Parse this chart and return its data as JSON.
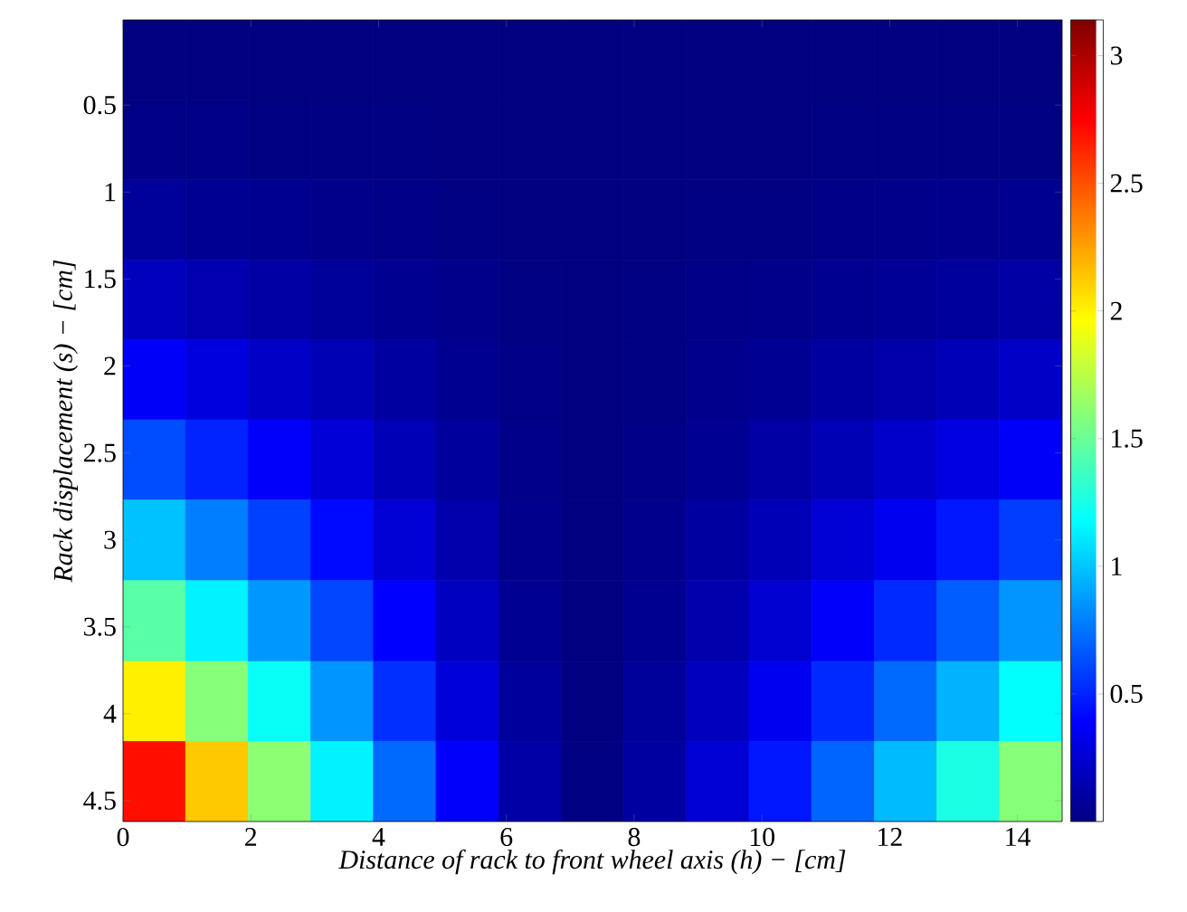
{
  "chart_data": {
    "type": "heatmap",
    "xlabel": "Distance of rack to front wheel axis (h) − [cm]",
    "ylabel": "Rack displacement (s) − [cm]",
    "x": [
      0.49,
      1.47,
      2.45,
      3.43,
      4.41,
      5.39,
      6.37,
      7.35,
      8.33,
      9.31,
      10.29,
      11.27,
      12.25,
      13.23,
      14.21
    ],
    "y": [
      0.24,
      0.7,
      1.16,
      1.62,
      2.08,
      2.54,
      3.0,
      3.47,
      3.93,
      4.39
    ],
    "xlim": [
      0,
      14.7
    ],
    "ylim": [
      4.62,
      0.01
    ],
    "xticks": [
      0,
      2,
      4,
      6,
      8,
      10,
      12,
      14
    ],
    "yticks": [
      0.5,
      1,
      1.5,
      2,
      2.5,
      3,
      3.5,
      4,
      4.5
    ],
    "clim": [
      0,
      3.14
    ],
    "cticks": [
      0.5,
      1,
      1.5,
      2,
      2.5,
      3
    ],
    "cells": [
      [
        0,
        0,
        0,
        0,
        0,
        0,
        0,
        0,
        0,
        0,
        0,
        0,
        0,
        0,
        0
      ],
      [
        0.02,
        0.02,
        0.01,
        0.01,
        0.01,
        0,
        0,
        0,
        0,
        0,
        0,
        0.01,
        0.01,
        0.01,
        0.01
      ],
      [
        0.08,
        0.06,
        0.05,
        0.03,
        0.02,
        0.01,
        0,
        0,
        0,
        0.01,
        0.01,
        0.02,
        0.03,
        0.04,
        0.05
      ],
      [
        0.19,
        0.15,
        0.11,
        0.08,
        0.05,
        0.03,
        0.01,
        0,
        0.01,
        0.02,
        0.03,
        0.05,
        0.07,
        0.09,
        0.11
      ],
      [
        0.37,
        0.29,
        0.22,
        0.16,
        0.1,
        0.05,
        0.02,
        0,
        0.01,
        0.04,
        0.06,
        0.1,
        0.13,
        0.17,
        0.22
      ],
      [
        0.63,
        0.5,
        0.38,
        0.27,
        0.17,
        0.09,
        0.03,
        0,
        0.02,
        0.06,
        0.11,
        0.16,
        0.23,
        0.3,
        0.37
      ],
      [
        0.99,
        0.78,
        0.59,
        0.42,
        0.26,
        0.14,
        0.04,
        0,
        0.04,
        0.1,
        0.17,
        0.26,
        0.35,
        0.46,
        0.58
      ],
      [
        1.45,
        1.14,
        0.86,
        0.61,
        0.39,
        0.2,
        0.06,
        0,
        0.05,
        0.14,
        0.25,
        0.38,
        0.52,
        0.68,
        0.85
      ],
      [
        2.01,
        1.59,
        1.2,
        0.85,
        0.54,
        0.28,
        0.09,
        0,
        0.08,
        0.19,
        0.35,
        0.52,
        0.72,
        0.94,
        1.18
      ],
      [
        2.7,
        2.13,
        1.61,
        1.14,
        0.72,
        0.38,
        0.12,
        0.01,
        0.1,
        0.26,
        0.46,
        0.7,
        0.97,
        1.26,
        1.59
      ]
    ]
  }
}
